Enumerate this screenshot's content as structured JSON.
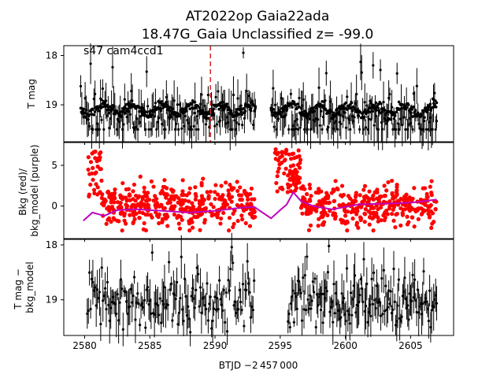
{
  "figure": {
    "title_line1": "AT2022op  Gaia22ada",
    "title_line2": "18.47G_Gaia Unclassified z= -99.0",
    "x_label": "BTJD −2 457 000",
    "x_ticks": [
      "2580",
      "2585",
      "2590",
      "2595",
      "2600",
      "2605"
    ]
  },
  "chart_data": [
    {
      "type": "scatter",
      "panel": "top",
      "ylabel": "T mag",
      "annotation": "s47 cam4ccd1",
      "y_inverted": true,
      "xlim": [
        2578.4,
        2608.3
      ],
      "ylim": [
        19.75,
        17.8
      ],
      "y_ticks": [
        "18",
        "19"
      ],
      "marker_line_x": 2589.65,
      "marker_line_color": "#d62728",
      "series_color": "#000000",
      "series": [
        {
          "x_start": 2579.7,
          "x_end": 2593.1,
          "y_typical": 19.2,
          "y_range": [
            17.9,
            19.5
          ],
          "errorbars": true
        },
        {
          "x_start": 2594.3,
          "x_end": 2607.0,
          "y_typical": 19.3,
          "y_range": [
            18.0,
            19.5
          ],
          "errorbars": true
        }
      ]
    },
    {
      "type": "scatter",
      "panel": "middle",
      "ylabel": "Bkg (red)/ bkg_model (purple)",
      "xlim": [
        2578.4,
        2608.3
      ],
      "ylim": [
        -4.0,
        7.8
      ],
      "y_ticks": [
        "5",
        "0"
      ],
      "series": [
        {
          "name": "Bkg",
          "color": "#ff0000",
          "x_start": 2580.2,
          "x_end": 2607.0,
          "y_range": [
            -3.0,
            7.2
          ]
        },
        {
          "name": "bkg_model",
          "color": "#bf00bf",
          "type": "line",
          "x": [
            2579.9,
            2580.6,
            2581.5,
            2582.5,
            2584.0,
            2586.0,
            2588.0,
            2590.0,
            2592.0,
            2593.0,
            2594.3,
            2595.0,
            2595.5,
            2596.0,
            2596.6,
            2597.5,
            2599.0,
            2601.0,
            2603.0,
            2605.0,
            2607.0
          ],
          "y": [
            -1.8,
            -0.8,
            -1.2,
            -0.5,
            -0.4,
            -0.6,
            -0.8,
            -0.6,
            -0.2,
            -0.1,
            -1.5,
            -0.5,
            0.2,
            1.7,
            0.6,
            0.0,
            -0.4,
            0.2,
            0.3,
            0.4,
            0.8
          ]
        }
      ]
    },
    {
      "type": "scatter",
      "panel": "bottom",
      "ylabel": "T mag − bkg_model",
      "y_inverted": true,
      "xlim": [
        2578.4,
        2608.3
      ],
      "ylim": [
        19.65,
        17.9
      ],
      "y_ticks": [
        "18",
        "19"
      ],
      "series_color": "#000000",
      "series": [
        {
          "x_start": 2580.2,
          "x_end": 2593.0,
          "y_typical": 19.0,
          "y_range": [
            18.0,
            19.6
          ],
          "errorbars": true
        },
        {
          "x_start": 2595.6,
          "x_end": 2607.0,
          "y_typical": 19.0,
          "y_range": [
            18.0,
            19.5
          ],
          "errorbars": true
        }
      ]
    }
  ]
}
